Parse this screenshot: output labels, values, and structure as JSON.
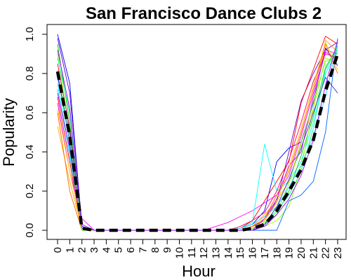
{
  "chart_data": {
    "type": "line",
    "title": "San Francisco Dance Clubs 2",
    "xlabel": "Hour",
    "ylabel": "Popularity",
    "x": [
      0,
      1,
      2,
      3,
      4,
      5,
      6,
      7,
      8,
      9,
      10,
      11,
      12,
      13,
      14,
      15,
      16,
      17,
      18,
      19,
      20,
      21,
      22,
      23
    ],
    "xlim": [
      0,
      23
    ],
    "ylim": [
      0,
      1
    ],
    "yticks": [
      0.0,
      0.2,
      0.4,
      0.6,
      0.8,
      1.0
    ],
    "ytick_labels": [
      "0.0",
      "0.2",
      "0.4",
      "0.6",
      "0.8",
      "1.0"
    ],
    "grid": false,
    "legend": "none",
    "series": [
      {
        "color": "#0000ff",
        "values": [
          1.0,
          0.75,
          0.02,
          0,
          0,
          0,
          0,
          0,
          0,
          0,
          0,
          0,
          0,
          0,
          0,
          0.01,
          0.03,
          0.1,
          0.35,
          0.42,
          0.45,
          0.65,
          0.93,
          0.84
        ]
      },
      {
        "color": "#6600cc",
        "values": [
          0.98,
          0.7,
          0.03,
          0,
          0,
          0,
          0,
          0,
          0,
          0,
          0,
          0,
          0,
          0,
          0,
          0.0,
          0.02,
          0.05,
          0.15,
          0.4,
          0.66,
          0.8,
          0.92,
          0.96
        ]
      },
      {
        "color": "#ff0000",
        "values": [
          0.68,
          0.35,
          0.0,
          0,
          0,
          0,
          0,
          0,
          0,
          0,
          0,
          0,
          0,
          0,
          0,
          0.01,
          0.05,
          0.15,
          0.25,
          0.35,
          0.65,
          0.82,
          0.99,
          0.95
        ]
      },
      {
        "color": "#ff00ff",
        "values": [
          0.65,
          0.3,
          0.06,
          0,
          0,
          0,
          0,
          0,
          0,
          0,
          0,
          0,
          0,
          0.02,
          0.04,
          0.07,
          0.1,
          0.14,
          0.18,
          0.28,
          0.48,
          0.7,
          0.92,
          0.9
        ]
      },
      {
        "color": "#00ffff",
        "values": [
          0.75,
          0.4,
          0.02,
          0,
          0,
          0,
          0,
          0,
          0,
          0,
          0,
          0,
          0,
          0,
          0,
          0.01,
          0.04,
          0.44,
          0.2,
          0.25,
          0.35,
          0.55,
          0.8,
          0.92
        ]
      },
      {
        "color": "#ffaa00",
        "values": [
          0.53,
          0.25,
          0.01,
          0,
          0,
          0,
          0,
          0,
          0,
          0,
          0,
          0,
          0,
          0,
          0,
          0.0,
          0.02,
          0.08,
          0.15,
          0.25,
          0.45,
          0.62,
          0.97,
          0.91
        ]
      },
      {
        "color": "#00cc00",
        "values": [
          0.95,
          0.55,
          0.01,
          0,
          0,
          0,
          0,
          0,
          0,
          0,
          0,
          0,
          0,
          0,
          0,
          0.0,
          0.01,
          0.03,
          0.08,
          0.2,
          0.38,
          0.58,
          0.83,
          0.94
        ]
      },
      {
        "color": "#99ff00",
        "values": [
          0.9,
          0.5,
          0.01,
          0,
          0,
          0,
          0,
          0,
          0,
          0,
          0,
          0,
          0,
          0,
          0,
          0.0,
          0.01,
          0.02,
          0.05,
          0.12,
          0.32,
          0.62,
          0.88,
          0.85
        ]
      },
      {
        "color": "#0066ff",
        "values": [
          0.8,
          0.45,
          0.0,
          0,
          0,
          0,
          0,
          0,
          0,
          0,
          0,
          0,
          0,
          0,
          0,
          0.0,
          0.0,
          0.0,
          0.0,
          0.15,
          0.18,
          0.25,
          0.5,
          0.98
        ]
      },
      {
        "color": "#33ccff",
        "values": [
          0.72,
          0.38,
          0.01,
          0,
          0,
          0,
          0,
          0,
          0,
          0,
          0,
          0,
          0,
          0,
          0,
          0.01,
          0.03,
          0.07,
          0.12,
          0.22,
          0.33,
          0.48,
          0.68,
          0.96
        ]
      },
      {
        "color": "#cc00ff",
        "values": [
          0.7,
          0.42,
          0.01,
          0,
          0,
          0,
          0,
          0,
          0,
          0,
          0,
          0,
          0,
          0,
          0,
          0.0,
          0.0,
          0.06,
          0.16,
          0.33,
          0.4,
          0.68,
          0.91,
          0.87
        ]
      },
      {
        "color": "#ff6600",
        "values": [
          0.6,
          0.2,
          0.0,
          0,
          0,
          0,
          0,
          0,
          0,
          0,
          0,
          0,
          0,
          0,
          0,
          0.0,
          0.02,
          0.06,
          0.18,
          0.3,
          0.5,
          0.72,
          0.95,
          0.8
        ]
      },
      {
        "color": "#ff0066",
        "values": [
          0.85,
          0.52,
          0.01,
          0,
          0,
          0,
          0,
          0,
          0,
          0,
          0,
          0,
          0,
          0,
          0,
          0.02,
          0.05,
          0.09,
          0.2,
          0.36,
          0.55,
          0.76,
          0.9,
          0.88
        ]
      },
      {
        "color": "#00ff99",
        "values": [
          0.88,
          0.6,
          0.01,
          0,
          0,
          0,
          0,
          0,
          0,
          0,
          0,
          0,
          0,
          0,
          0,
          0.0,
          0.01,
          0.04,
          0.1,
          0.18,
          0.3,
          0.52,
          0.82,
          0.93
        ]
      },
      {
        "color": "#3333cc",
        "values": [
          0.78,
          0.5,
          0.01,
          0,
          0,
          0,
          0,
          0,
          0,
          0,
          0,
          0,
          0,
          0,
          0,
          0.0,
          0.0,
          0.03,
          0.12,
          0.26,
          0.42,
          0.6,
          0.78,
          0.7
        ]
      },
      {
        "color": "#ffcc00",
        "values": [
          0.62,
          0.3,
          0.0,
          0,
          0,
          0,
          0,
          0,
          0,
          0,
          0,
          0,
          0,
          0,
          0,
          0.0,
          0.01,
          0.05,
          0.14,
          0.32,
          0.52,
          0.74,
          0.96,
          0.82
        ]
      },
      {
        "color": "#66ff33",
        "values": [
          0.82,
          0.48,
          0.0,
          0,
          0,
          0,
          0,
          0,
          0,
          0,
          0,
          0,
          0,
          0,
          0,
          0.0,
          0.01,
          0.04,
          0.09,
          0.24,
          0.44,
          0.66,
          0.86,
          0.9
        ]
      },
      {
        "color": "#9900ff",
        "values": [
          0.92,
          0.62,
          0.02,
          0,
          0,
          0,
          0,
          0,
          0,
          0,
          0,
          0,
          0,
          0,
          0,
          0.0,
          0.0,
          0.02,
          0.08,
          0.16,
          0.28,
          0.46,
          0.74,
          0.97
        ]
      }
    ],
    "mean": {
      "color": "#000000",
      "values": [
        0.81,
        0.48,
        0.01,
        0,
        0,
        0,
        0,
        0,
        0,
        0,
        0,
        0,
        0,
        0,
        0,
        0.0,
        0.01,
        0.03,
        0.1,
        0.2,
        0.31,
        0.46,
        0.71,
        0.9
      ]
    }
  }
}
